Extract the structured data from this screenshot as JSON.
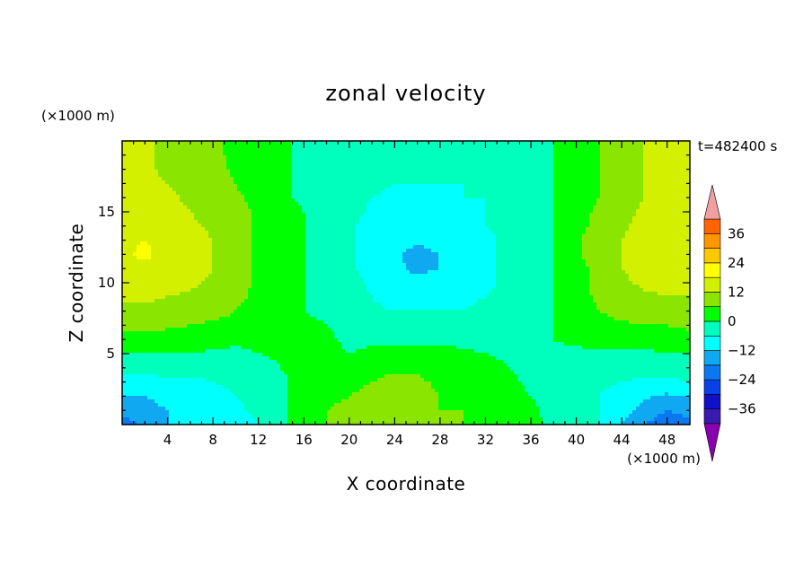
{
  "chart_data": {
    "type": "heatmap",
    "title": "zonal velocity",
    "xlabel": "X coordinate",
    "ylabel": "Z coordinate",
    "x_unit": "(×1000 m)",
    "z_unit": "(×1000 m)",
    "time_label": "t=482400 s",
    "xlim": [
      0,
      50
    ],
    "ylim": [
      0,
      20
    ],
    "x_ticks": [
      4,
      8,
      12,
      16,
      20,
      24,
      28,
      32,
      36,
      40,
      44,
      48
    ],
    "y_ticks": [
      5,
      10,
      15
    ],
    "colorbar": {
      "levels": [
        -42,
        -36,
        -30,
        -24,
        -18,
        -12,
        -6,
        0,
        6,
        12,
        18,
        24,
        30,
        36,
        42
      ],
      "tick_values": [
        -36,
        -24,
        -12,
        0,
        12,
        24,
        36
      ],
      "tick_labels": [
        "−36",
        "−24",
        "−12",
        "0",
        "12",
        "24",
        "36"
      ],
      "colors": [
        "#8a00b0",
        "#3a1ab0",
        "#1010c8",
        "#0a40e8",
        "#0a78f0",
        "#10a8f0",
        "#00ffff",
        "#00ffbc",
        "#00ff00",
        "#8ae600",
        "#d2f000",
        "#ffff00",
        "#ffc800",
        "#ff9600",
        "#ff6400",
        "#ff3c1e",
        "#f0a0a0"
      ]
    },
    "x_samples": [
      0,
      2,
      4,
      6,
      8,
      10,
      12,
      14,
      16,
      18,
      20,
      22,
      24,
      26,
      28,
      30,
      32,
      34,
      36,
      38,
      40,
      42,
      44,
      46,
      48,
      50
    ],
    "z_samples": [
      0,
      1,
      2,
      3,
      4,
      5,
      6,
      7,
      8,
      9,
      10,
      11,
      12,
      13,
      14,
      15,
      16,
      17,
      18,
      19,
      20
    ],
    "values": [
      [
        -22,
        -16,
        -12,
        -12,
        -10,
        -8,
        -6,
        -2,
        4,
        6,
        8,
        9,
        10,
        10,
        6,
        6,
        4,
        4,
        2,
        -2,
        -4,
        -6,
        -12,
        -18,
        -22,
        -20
      ],
      [
        -16,
        -14,
        -12,
        -11,
        -9,
        -7,
        -5,
        -2,
        4,
        6,
        8,
        9,
        10,
        9,
        6,
        6,
        4,
        3,
        1,
        -2,
        -4,
        -6,
        -10,
        -14,
        -18,
        -16
      ],
      [
        -12,
        -12,
        -10,
        -9,
        -8,
        -6,
        -4,
        -1,
        3,
        4,
        6,
        8,
        9,
        8,
        6,
        5,
        3,
        2,
        0,
        -2,
        -4,
        -6,
        -8,
        -11,
        -13,
        -12
      ],
      [
        -8,
        -8,
        -7,
        -7,
        -6,
        -5,
        -3,
        -1,
        2,
        3,
        4,
        6,
        8,
        7,
        5,
        4,
        2,
        1,
        -1,
        -2,
        -4,
        -5,
        -6,
        -7,
        -7,
        -6
      ],
      [
        -4,
        -4,
        -4,
        -4,
        -4,
        -3,
        -2,
        0,
        2,
        2,
        2,
        3,
        5,
        5,
        4,
        3,
        2,
        0,
        -1,
        -2,
        -3,
        -3,
        -4,
        -4,
        -4,
        -3
      ],
      [
        0,
        0,
        0,
        0,
        -1,
        -1,
        0,
        1,
        2,
        1,
        0,
        1,
        2,
        2,
        2,
        1,
        0,
        -1,
        -1,
        -1,
        -1,
        -1,
        -1,
        -1,
        0,
        0
      ],
      [
        4,
        4,
        3,
        3,
        2,
        1,
        1,
        2,
        2,
        1,
        -1,
        -1,
        -1,
        -1,
        -1,
        -2,
        -2,
        -2,
        -1,
        0,
        1,
        2,
        2,
        2,
        3,
        4
      ],
      [
        8,
        8,
        7,
        6,
        5,
        4,
        2,
        2,
        1,
        0,
        -2,
        -4,
        -4,
        -4,
        -4,
        -4,
        -4,
        -4,
        -2,
        0,
        2,
        4,
        5,
        6,
        6,
        7
      ],
      [
        11,
        11,
        10,
        9,
        8,
        6,
        4,
        2,
        0,
        -1,
        -3,
        -5,
        -6,
        -6,
        -6,
        -6,
        -5,
        -5,
        -3,
        0,
        3,
        6,
        8,
        9,
        10,
        10
      ],
      [
        13,
        13,
        12,
        11,
        9,
        7,
        5,
        2,
        0,
        -2,
        -4,
        -6,
        -8,
        -8,
        -8,
        -7,
        -6,
        -5,
        -3,
        0,
        4,
        7,
        10,
        11,
        12,
        12
      ],
      [
        14,
        15,
        14,
        13,
        11,
        8,
        5,
        2,
        0,
        -2,
        -4,
        -7,
        -10,
        -11,
        -10,
        -8,
        -7,
        -5,
        -3,
        0,
        4,
        8,
        11,
        13,
        14,
        14
      ],
      [
        16,
        17,
        15,
        14,
        12,
        9,
        5,
        2,
        0,
        -2,
        -5,
        -8,
        -11,
        -13,
        -12,
        -9,
        -7,
        -5,
        -3,
        0,
        4,
        8,
        12,
        14,
        15,
        15
      ],
      [
        17,
        19,
        16,
        14,
        12,
        9,
        5,
        2,
        0,
        -2,
        -5,
        -8,
        -11,
        -14,
        -12,
        -9,
        -7,
        -5,
        -3,
        0,
        5,
        9,
        12,
        15,
        17,
        16
      ],
      [
        17,
        18,
        16,
        14,
        12,
        9,
        5,
        2,
        0,
        -2,
        -5,
        -8,
        -10,
        -11,
        -10,
        -8,
        -7,
        -5,
        -3,
        0,
        5,
        9,
        12,
        15,
        18,
        17
      ],
      [
        16,
        16,
        15,
        13,
        11,
        8,
        5,
        2,
        0,
        -2,
        -5,
        -8,
        -9,
        -9,
        -8,
        -7,
        -6,
        -5,
        -3,
        0,
        4,
        8,
        11,
        14,
        16,
        16
      ],
      [
        15,
        15,
        14,
        12,
        10,
        8,
        5,
        2,
        0,
        -2,
        -4,
        -7,
        -8,
        -8,
        -7,
        -7,
        -6,
        -5,
        -3,
        0,
        4,
        7,
        10,
        13,
        14,
        14
      ],
      [
        14,
        14,
        13,
        11,
        9,
        7,
        4,
        1,
        -1,
        -2,
        -4,
        -6,
        -7,
        -7,
        -7,
        -6,
        -6,
        -5,
        -3,
        0,
        3,
        6,
        9,
        12,
        13,
        13
      ],
      [
        14,
        13,
        12,
        10,
        8,
        6,
        3,
        1,
        -1,
        -2,
        -4,
        -5,
        -6,
        -6,
        -6,
        -6,
        -5,
        -4,
        -3,
        0,
        3,
        6,
        9,
        12,
        13,
        13
      ],
      [
        14,
        13,
        11,
        10,
        8,
        5,
        3,
        1,
        -1,
        -2,
        -4,
        -5,
        -5,
        -5,
        -5,
        -5,
        -5,
        -4,
        -2,
        0,
        3,
        6,
        9,
        12,
        13,
        13
      ],
      [
        13,
        13,
        11,
        9,
        7,
        5,
        3,
        1,
        -1,
        -2,
        -3,
        -4,
        -4,
        -4,
        -4,
        -4,
        -4,
        -3,
        -2,
        0,
        3,
        6,
        9,
        12,
        13,
        13
      ],
      [
        13,
        13,
        11,
        9,
        7,
        5,
        3,
        1,
        -1,
        -2,
        -3,
        -4,
        -4,
        -4,
        -4,
        -4,
        -4,
        -3,
        -2,
        0,
        3,
        6,
        9,
        12,
        13,
        13
      ]
    ]
  }
}
